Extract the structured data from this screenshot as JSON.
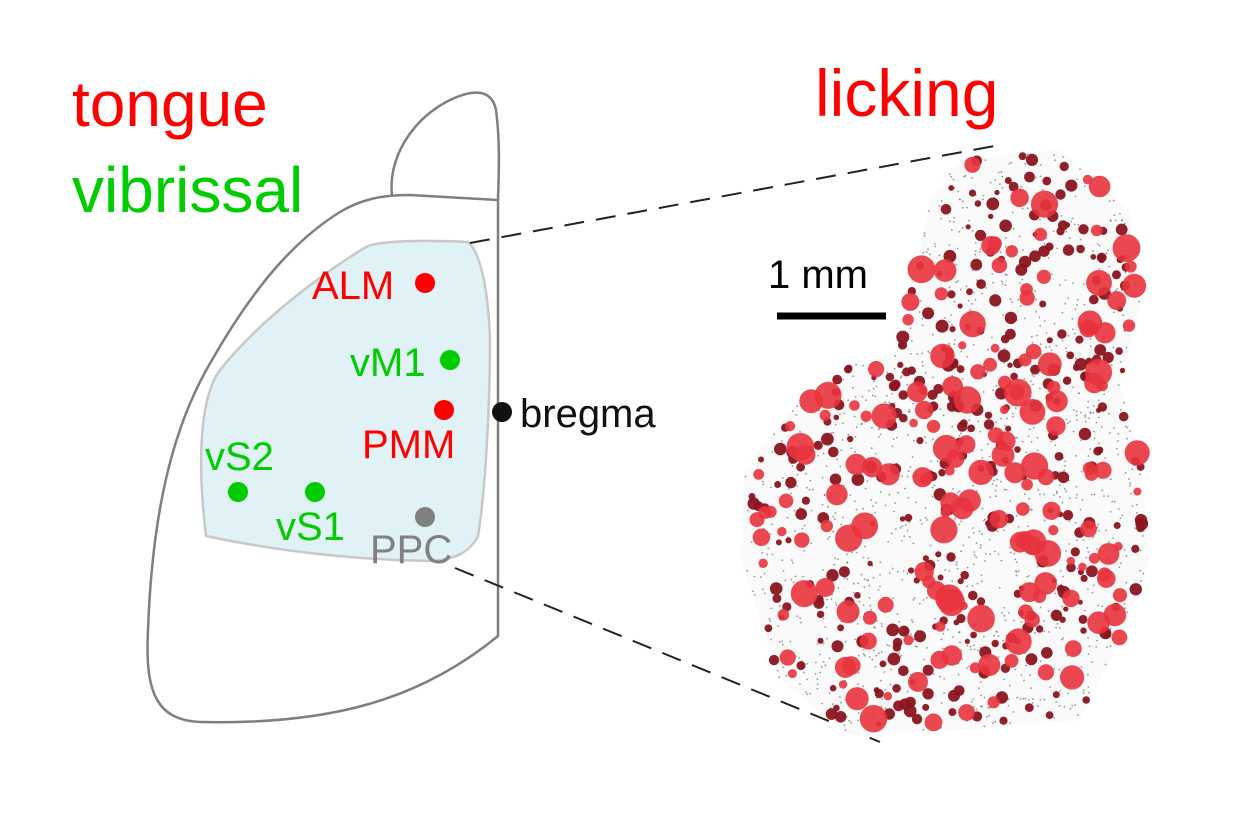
{
  "titles": {
    "tongue": "tongue",
    "vibrissal": "vibrissal",
    "licking": "licking"
  },
  "colors": {
    "tongue": "#ff0000",
    "vibrissal": "#00cc00",
    "ppc": "#808080",
    "bregma": "#111111",
    "outline": "#7f7f7f",
    "window_fill": "#e0f2f6",
    "cell_bright": "#e8333d",
    "cell_dark": "#8a1520",
    "background_cells": "#555555"
  },
  "areas": {
    "alm": "ALM",
    "vm1": "vM1",
    "pmm": "PMM",
    "vs2": "vS2",
    "vs1": "vS1",
    "ppc": "PPC"
  },
  "bregma": "bregma",
  "scale_bar": "1 mm"
}
